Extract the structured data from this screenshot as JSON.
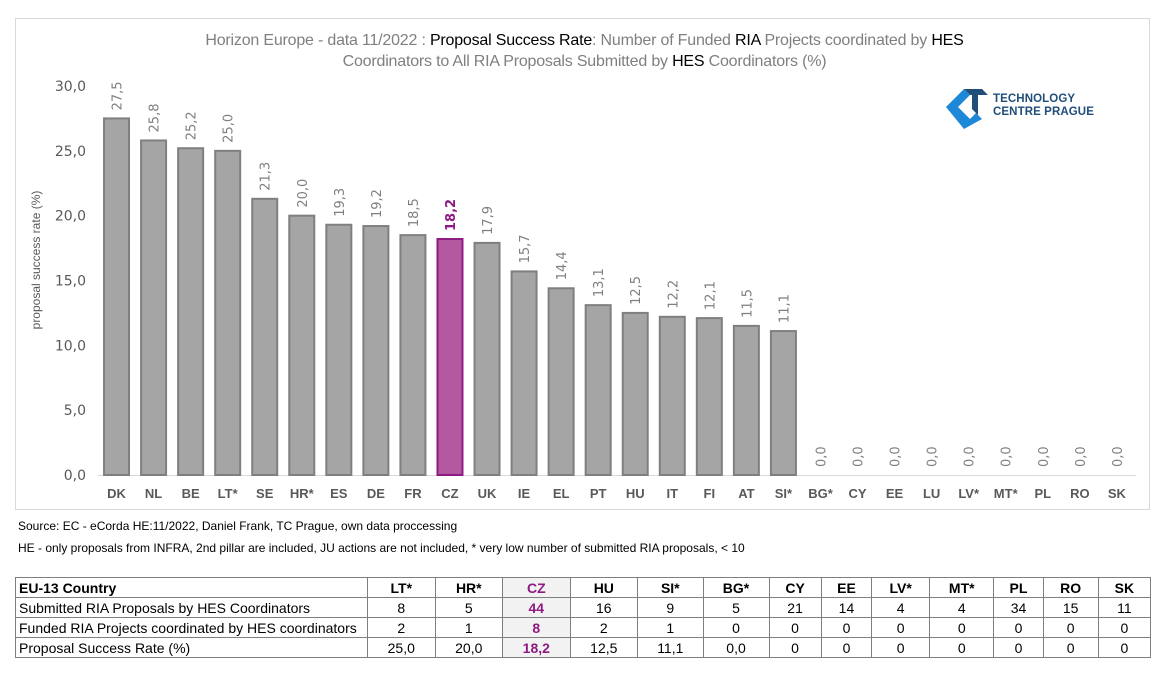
{
  "title": {
    "line1_parts": [
      {
        "text": "Horizon Europe - data 11/2022 : ",
        "dark": false
      },
      {
        "text": "Proposal Success Rate",
        "dark": true
      },
      {
        "text": ": Number of Funded ",
        "dark": false
      },
      {
        "text": "RIA",
        "dark": true
      },
      {
        "text": " Projects coordinated by ",
        "dark": false
      },
      {
        "text": "HES",
        "dark": true
      }
    ],
    "line2_parts": [
      {
        "text": "Coordinators to All RIA Proposals Submitted by ",
        "dark": false
      },
      {
        "text": "HES",
        "dark": true
      },
      {
        "text": " Coordinators (%)",
        "dark": false
      }
    ]
  },
  "logo": {
    "line1": "TECHNOLOGY",
    "line2": "CENTRE PRAGUE",
    "colors": {
      "light_blue": "#1e88d8",
      "dark_blue": "#1f4e79"
    }
  },
  "chart_data": {
    "type": "bar",
    "title": "Horizon Europe - data 11/2022 : Proposal Success Rate: Number of Funded RIA Projects coordinated by HES Coordinators to All RIA Proposals Submitted by HES Coordinators (%)",
    "xlabel": "",
    "ylabel": "proposal success rate (%)",
    "ylim": [
      0,
      30
    ],
    "yticks": [
      "0,0",
      "5,0",
      "10,0",
      "15,0",
      "20,0",
      "25,0",
      "30,0"
    ],
    "ytick_values": [
      0,
      5,
      10,
      15,
      20,
      25,
      30
    ],
    "grid": false,
    "categories": [
      "DK",
      "NL",
      "BE",
      "LT*",
      "SE",
      "HR*",
      "ES",
      "DE",
      "FR",
      "CZ",
      "UK",
      "IE",
      "EL",
      "PT",
      "HU",
      "IT",
      "FI",
      "AT",
      "SI*",
      "BG*",
      "CY",
      "EE",
      "LU",
      "LV*",
      "MT*",
      "PL",
      "RO",
      "SK"
    ],
    "values": [
      27.5,
      25.8,
      25.2,
      25.0,
      21.3,
      20.0,
      19.3,
      19.2,
      18.5,
      18.2,
      17.9,
      15.7,
      14.4,
      13.1,
      12.5,
      12.2,
      12.1,
      11.5,
      11.1,
      0.0,
      0.0,
      0.0,
      0.0,
      0.0,
      0.0,
      0.0,
      0.0,
      0.0
    ],
    "data_labels": [
      "27,5",
      "25,8",
      "25,2",
      "25,0",
      "21,3",
      "20,0",
      "19,3",
      "19,2",
      "18,5",
      "18,2",
      "17,9",
      "15,7",
      "14,4",
      "13,1",
      "12,5",
      "12,2",
      "12,1",
      "11,5",
      "11,1",
      "0,0",
      "0,0",
      "0,0",
      "0,0",
      "0,0",
      "0,0",
      "0,0",
      "0,0",
      "0,0"
    ],
    "highlight_category": "CZ",
    "colors": {
      "bar": "#a5a5a5",
      "bar_border": "#7f7f7f",
      "highlight": "#b4589f",
      "highlight_border": "#8e1b84",
      "label": "#7f7f7f",
      "highlight_label": "#8e1b84"
    }
  },
  "notes": {
    "source": "Source: EC - eCorda HE:11/2022, Daniel Frank, TC Prague, own data proccessing",
    "remark": "HE - only proposals from INFRA, 2nd pillar are included, JU actions are not included, * very low number of submitted RIA proposals,  < 10"
  },
  "table": {
    "header_label": "EU-13 Country",
    "columns": [
      "LT*",
      "HR*",
      "CZ",
      "HU",
      "SI*",
      "BG*",
      "CY",
      "EE",
      "LV*",
      "MT*",
      "PL",
      "RO",
      "SK"
    ],
    "highlight_column": "CZ",
    "rows": [
      {
        "label": "Submitted RIA Proposals by HES Coordinators",
        "values": [
          "8",
          "5",
          "44",
          "16",
          "9",
          "5",
          "21",
          "14",
          "4",
          "4",
          "34",
          "15",
          "11"
        ]
      },
      {
        "label": "Funded RIA Projects coordinated by HES coordinators",
        "values": [
          "2",
          "1",
          "8",
          "2",
          "1",
          "0",
          "0",
          "0",
          "0",
          "0",
          "0",
          "0",
          "0"
        ]
      },
      {
        "label": "Proposal Success Rate (%)",
        "values": [
          "25,0",
          "20,0",
          "18,2",
          "12,5",
          "11,1",
          "0,0",
          "0",
          "0",
          "0",
          "0",
          "0",
          "0",
          "0"
        ]
      }
    ]
  }
}
